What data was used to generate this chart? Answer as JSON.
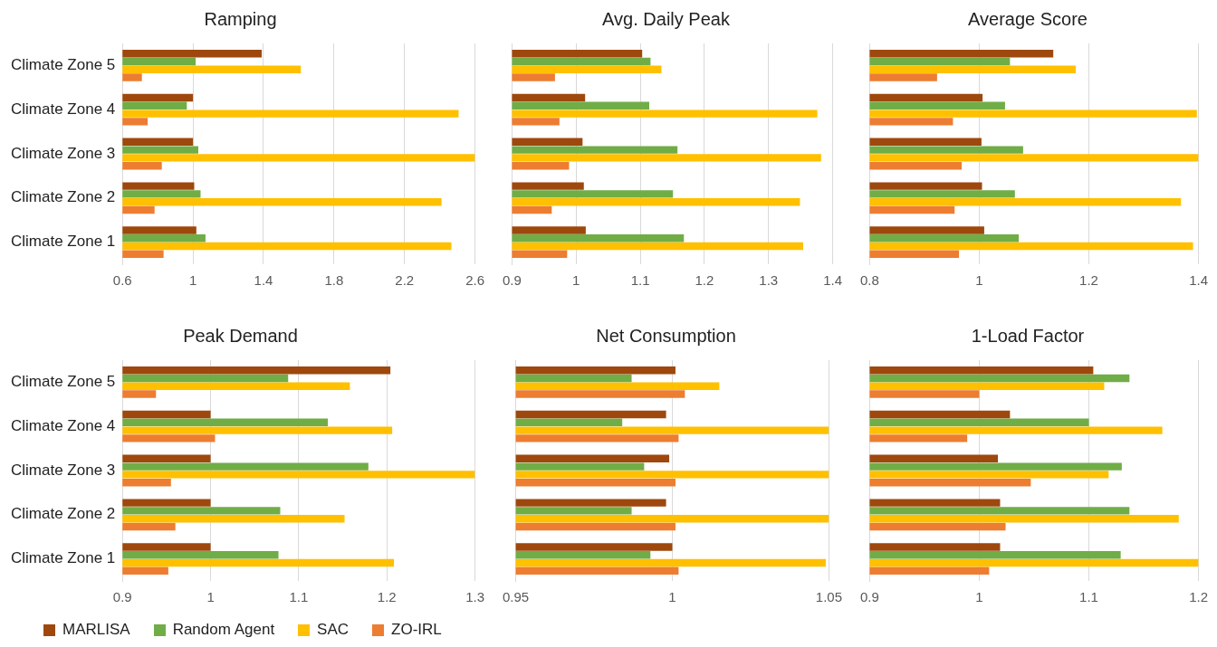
{
  "chart_data": [
    {
      "type": "bar",
      "orientation": "horizontal",
      "title": "Ramping",
      "categories": [
        "Climate Zone 5",
        "Climate Zone 4",
        "Climate Zone 3",
        "Climate Zone 2",
        "Climate Zone 1"
      ],
      "xlim": [
        0.6,
        2.6
      ],
      "xticks": [
        0.6,
        1,
        1.4,
        1.8,
        2.2,
        2.6
      ],
      "grid": "x",
      "legend": "bottom",
      "series": [
        {
          "name": "MARLISA",
          "color": "#9e480e",
          "values": [
            1.39,
            1.0,
            1.0,
            1.007,
            1.019
          ]
        },
        {
          "name": "Random Agent",
          "color": "#70ad47",
          "values": [
            1.015,
            0.965,
            1.03,
            1.043,
            1.071
          ]
        },
        {
          "name": "SAC",
          "color": "#ffc000",
          "values": [
            1.612,
            2.507,
            2.6,
            2.41,
            2.466
          ]
        },
        {
          "name": "ZO-IRL",
          "color": "#ed7d31",
          "values": [
            0.71,
            0.743,
            0.823,
            0.782,
            0.833
          ]
        }
      ]
    },
    {
      "type": "bar",
      "orientation": "horizontal",
      "title": "Avg. Daily Peak",
      "categories": [
        null,
        null,
        null,
        null,
        null
      ],
      "xlim": [
        0.9,
        1.4
      ],
      "xticks": [
        0.9,
        1,
        1.1,
        1.2,
        1.3,
        1.4
      ],
      "grid": "x",
      "tick_labels": "x",
      "series": [
        {
          "color": "#9e480e",
          "values": [
            1.103,
            1.014,
            1.01,
            1.012,
            1.015
          ]
        },
        {
          "color": "#70ad47",
          "values": [
            1.116,
            1.114,
            1.158,
            1.151,
            1.168
          ]
        },
        {
          "color": "#ffc000",
          "values": [
            1.133,
            1.376,
            1.382,
            1.349,
            1.354
          ]
        },
        {
          "color": "#ed7d31",
          "values": [
            0.967,
            0.974,
            0.989,
            0.962,
            0.986
          ]
        }
      ]
    },
    {
      "type": "bar",
      "orientation": "horizontal",
      "title": "Average Score",
      "categories": [
        null,
        null,
        null,
        null,
        null
      ],
      "xlim": [
        0.8,
        1.4
      ],
      "xticks": [
        0.8,
        1,
        1.2,
        1.4
      ],
      "grid": "x",
      "tick_labels": "x",
      "series": [
        {
          "color": "#9e480e",
          "values": [
            1.135,
            1.006,
            1.004,
            1.005,
            1.009
          ]
        },
        {
          "color": "#70ad47",
          "values": [
            1.056,
            1.047,
            1.08,
            1.065,
            1.072
          ]
        },
        {
          "color": "#ffc000",
          "values": [
            1.176,
            1.397,
            1.4,
            1.368,
            1.39
          ]
        },
        {
          "color": "#ed7d31",
          "values": [
            0.923,
            0.952,
            0.968,
            0.955,
            0.963
          ]
        }
      ]
    },
    {
      "type": "bar",
      "orientation": "horizontal",
      "title": "Peak Demand",
      "categories": [
        "Climate Zone 5",
        "Climate Zone 4",
        "Climate Zone 3",
        "Climate Zone 2",
        "Climate Zone 1"
      ],
      "xlim": [
        0.9,
        1.3
      ],
      "xticks": [
        0.9,
        1,
        1.1,
        1.2,
        1.3
      ],
      "grid": "x",
      "series": [
        {
          "color": "#9e480e",
          "values": [
            1.204,
            1.0,
            1.0,
            1.0,
            1.0
          ]
        },
        {
          "color": "#70ad47",
          "values": [
            1.088,
            1.133,
            1.179,
            1.079,
            1.077
          ]
        },
        {
          "color": "#ffc000",
          "values": [
            1.158,
            1.206,
            1.3,
            1.152,
            1.208
          ]
        },
        {
          "color": "#ed7d31",
          "values": [
            0.938,
            1.005,
            0.955,
            0.96,
            0.952
          ]
        }
      ]
    },
    {
      "type": "bar",
      "orientation": "horizontal",
      "title": "Net Consumption",
      "categories": [
        null,
        null,
        null,
        null,
        null
      ],
      "xlim": [
        0.95,
        1.05
      ],
      "xticks": [
        0.95,
        1,
        1.05
      ],
      "grid": "x",
      "tick_labels": "x",
      "series": [
        {
          "color": "#9e480e",
          "values": [
            1.001,
            0.998,
            0.999,
            0.998,
            1.0
          ]
        },
        {
          "color": "#70ad47",
          "values": [
            0.987,
            0.984,
            0.991,
            0.987,
            0.993
          ]
        },
        {
          "color": "#ffc000",
          "values": [
            1.015,
            1.05,
            1.05,
            1.05,
            1.049
          ]
        },
        {
          "color": "#ed7d31",
          "values": [
            1.004,
            1.002,
            1.001,
            1.001,
            1.002
          ]
        }
      ]
    },
    {
      "type": "bar",
      "orientation": "horizontal",
      "title": "1-Load Factor",
      "categories": [
        null,
        null,
        null,
        null,
        null
      ],
      "xlim": [
        0.9,
        1.2
      ],
      "xticks": [
        0.9,
        1,
        1.1,
        1.2
      ],
      "grid": "x",
      "tick_labels": "x",
      "series": [
        {
          "color": "#9e480e",
          "values": [
            1.104,
            1.028,
            1.017,
            1.019,
            1.019
          ]
        },
        {
          "color": "#70ad47",
          "values": [
            1.137,
            1.1,
            1.13,
            1.137,
            1.129
          ]
        },
        {
          "color": "#ffc000",
          "values": [
            1.114,
            1.167,
            1.118,
            1.182,
            1.2
          ]
        },
        {
          "color": "#ed7d31",
          "values": [
            1.0,
            0.989,
            1.047,
            1.024,
            1.009
          ]
        }
      ]
    }
  ]
}
